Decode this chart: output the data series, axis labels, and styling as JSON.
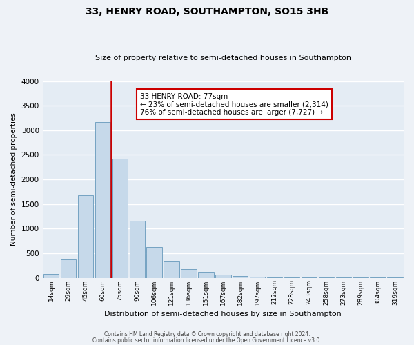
{
  "title": "33, HENRY ROAD, SOUTHAMPTON, SO15 3HB",
  "subtitle": "Size of property relative to semi-detached houses in Southampton",
  "xlabel": "Distribution of semi-detached houses by size in Southampton",
  "ylabel": "Number of semi-detached properties",
  "bin_labels": [
    "14sqm",
    "29sqm",
    "45sqm",
    "60sqm",
    "75sqm",
    "90sqm",
    "106sqm",
    "121sqm",
    "136sqm",
    "151sqm",
    "167sqm",
    "182sqm",
    "197sqm",
    "212sqm",
    "228sqm",
    "243sqm",
    "258sqm",
    "273sqm",
    "289sqm",
    "304sqm",
    "319sqm"
  ],
  "bar_values": [
    75,
    370,
    1680,
    3160,
    2420,
    1160,
    625,
    340,
    175,
    115,
    60,
    30,
    15,
    5,
    3,
    2,
    2,
    2,
    2,
    2,
    2
  ],
  "bar_color": "#c6d9ea",
  "bar_edge_color": "#6699bb",
  "vline_color": "#cc0000",
  "annotation_title": "33 HENRY ROAD: 77sqm",
  "annotation_line1": "← 23% of semi-detached houses are smaller (2,314)",
  "annotation_line2": "76% of semi-detached houses are larger (7,727) →",
  "annotation_box_edgecolor": "#cc0000",
  "ylim": [
    0,
    4000
  ],
  "yticks": [
    0,
    500,
    1000,
    1500,
    2000,
    2500,
    3000,
    3500,
    4000
  ],
  "footer1": "Contains HM Land Registry data © Crown copyright and database right 2024.",
  "footer2": "Contains public sector information licensed under the Open Government Licence v3.0.",
  "bg_color": "#eef2f7",
  "plot_bg_color": "#e4ecf4",
  "vline_bar_index": 3
}
